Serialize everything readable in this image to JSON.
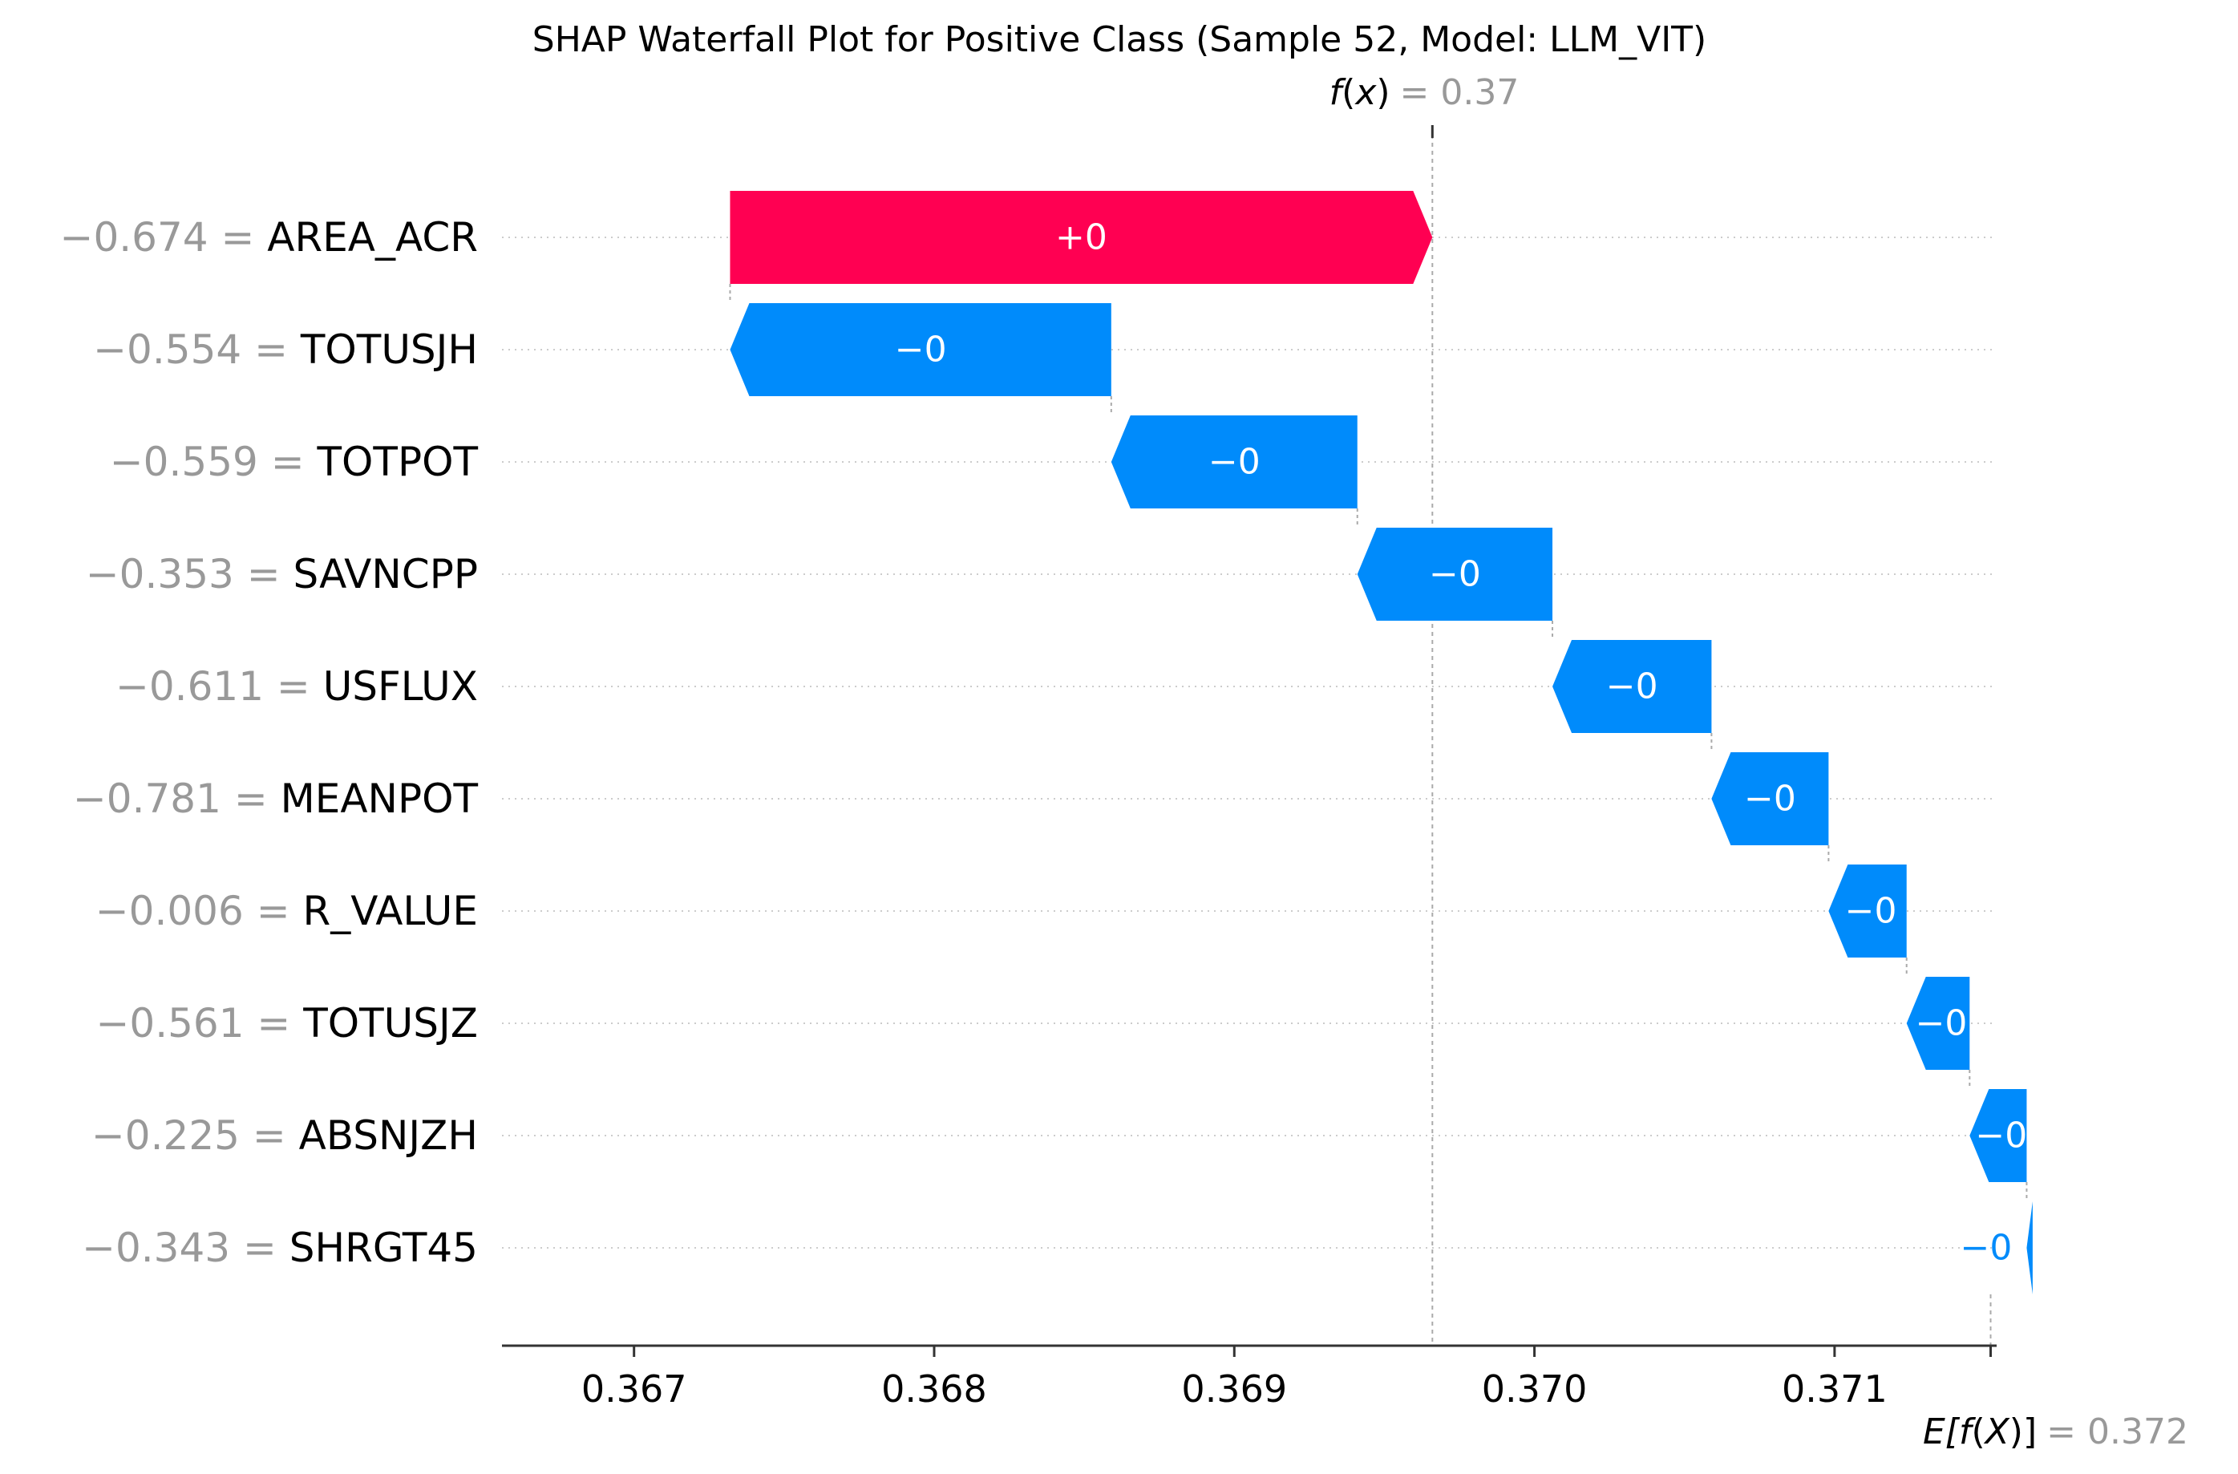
{
  "chart_data": {
    "type": "waterfall",
    "title": "SHAP Waterfall Plot for Positive Class (Sample 52, Model: LLM_VIT)",
    "fx": {
      "prefix": "f",
      "var": "x",
      "value_text": "= 0.37",
      "value": 0.37
    },
    "efx": {
      "prefix": "E[f",
      "var": "X",
      "suffix": ")]",
      "value_text": "= 0.372",
      "value": 0.372
    },
    "xlim": [
      0.36656,
      0.37154
    ],
    "ticks": [
      {
        "value": 0.367,
        "label": "0.367"
      },
      {
        "value": 0.368,
        "label": "0.368"
      },
      {
        "value": 0.369,
        "label": "0.369"
      },
      {
        "value": 0.37,
        "label": "0.370"
      },
      {
        "value": 0.371,
        "label": "0.371"
      }
    ],
    "base_value": 0.37152,
    "final_value": 0.36966,
    "features": [
      {
        "value_text": "−0.674",
        "name": "AREA_ACR",
        "shap": 0.00234,
        "label": "+0"
      },
      {
        "value_text": "−0.554",
        "name": "TOTUSJH",
        "shap": -0.00127,
        "label": "−0"
      },
      {
        "value_text": "−0.559",
        "name": "TOTPOT",
        "shap": -0.00082,
        "label": "−0"
      },
      {
        "value_text": "−0.353",
        "name": "SAVNCPP",
        "shap": -0.00065,
        "label": "−0"
      },
      {
        "value_text": "−0.611",
        "name": "USFLUX",
        "shap": -0.00053,
        "label": "−0"
      },
      {
        "value_text": "−0.781",
        "name": "MEANPOT",
        "shap": -0.00039,
        "label": "−0"
      },
      {
        "value_text": "−0.006",
        "name": "R_VALUE",
        "shap": -0.00026,
        "label": "−0"
      },
      {
        "value_text": "−0.561",
        "name": "TOTUSJZ",
        "shap": -0.00021,
        "label": "−0"
      },
      {
        "value_text": "−0.225",
        "name": "ABSNJZH",
        "shap": -0.00019,
        "label": "−0"
      },
      {
        "value_text": "−0.343",
        "name": "SHRGT45",
        "shap": -2e-05,
        "label": "−0"
      }
    ],
    "colors": {
      "positive": "#ff0052",
      "negative": "#008bfb",
      "gray_text": "#999999",
      "axis": "#333333",
      "text": "#000000"
    },
    "grid": "dotted"
  }
}
